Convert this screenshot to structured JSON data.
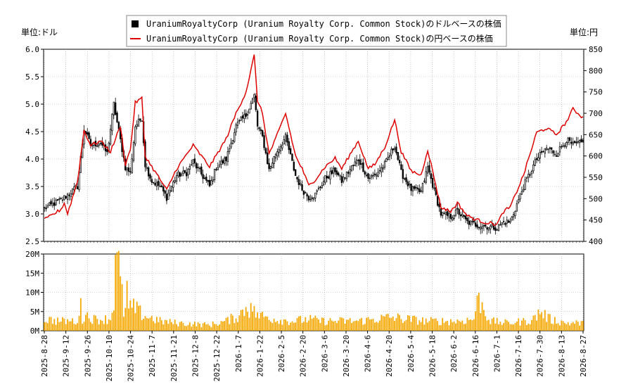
{
  "units": {
    "left": "単位:ドル",
    "right": "単位:円"
  },
  "legend": {
    "usd": "UraniumRoyaltyCorp (Uranium Royalty Corp. Common Stock)のドルベースの株価",
    "jpy": "UraniumRoyaltyCorp (Uranium Royalty Corp. Common Stock)の円ベースの株価"
  },
  "colors": {
    "candle": "#000000",
    "jpy_line": "#dd0000",
    "volume": "#f5a800",
    "grid": "#aaaaaa"
  },
  "chart_data": {
    "type": "line",
    "price_panel": {
      "y_left": {
        "range": [
          2.5,
          6.0
        ],
        "ticks": [
          "2.5",
          "3.0",
          "3.5",
          "4.0",
          "4.5",
          "5.0",
          "5.5",
          "6.0"
        ]
      },
      "y_right": {
        "range": [
          400,
          850
        ],
        "ticks": [
          "400",
          "450",
          "500",
          "550",
          "600",
          "650",
          "700",
          "750",
          "800",
          "850"
        ]
      }
    },
    "volume_panel": {
      "range": [
        0,
        20
      ],
      "unit": "M",
      "ticks": [
        "0M",
        "5M",
        "10M",
        "15M",
        "20M"
      ]
    },
    "x_ticks": [
      "2025-8-28",
      "2025-9-12",
      "2025-9-26",
      "2025-10-10",
      "2025-10-24",
      "2025-11-7",
      "2025-11-21",
      "2025-12-8",
      "2025-12-22",
      "2026-1-7",
      "2026-1-22",
      "2026-2-5",
      "2026-2-20",
      "2026-3-6",
      "2026-3-20",
      "2026-4-6",
      "2026-4-20",
      "2026-5-4",
      "2026-5-18",
      "2026-6-2",
      "2026-6-16",
      "2026-7-1",
      "2026-7-16",
      "2026-7-30",
      "2026-8-13",
      "2026-8-27"
    ],
    "series": [
      {
        "name": "UraniumRoyaltyCorp (Uranium Royalty Corp. Common Stock)のドルベースの株価",
        "anchor_x": [
          0,
          10,
          20,
          24,
          28,
          34,
          38,
          42,
          49,
          52,
          55,
          59,
          61,
          65,
          70,
          74,
          80,
          86,
          90,
          100,
          104,
          110,
          116,
          122,
          127,
          129,
          132,
          136,
          140,
          146,
          152,
          156,
          160,
          164,
          170,
          176,
          180,
          186,
          190,
          196,
          200,
          206,
          212,
          216,
          222,
          228,
          232,
          240,
          246,
          250,
          256,
          262,
          266,
          274,
          278,
          282,
          290,
          298,
          304,
          310,
          316,
          320,
          326
        ],
        "anchor_close": [
          3.1,
          3.25,
          3.5,
          4.55,
          4.25,
          4.3,
          4.1,
          5.0,
          3.85,
          3.75,
          4.6,
          4.75,
          3.9,
          3.6,
          3.5,
          3.3,
          3.7,
          3.75,
          3.95,
          3.5,
          3.85,
          4.0,
          4.6,
          4.8,
          5.15,
          4.6,
          4.4,
          3.8,
          4.1,
          4.4,
          3.7,
          3.45,
          3.3,
          3.35,
          3.65,
          3.8,
          3.6,
          3.85,
          4.0,
          3.65,
          3.7,
          3.9,
          4.25,
          3.75,
          3.45,
          3.4,
          3.85,
          3.0,
          2.95,
          3.05,
          2.85,
          2.8,
          2.78,
          2.75,
          2.85,
          2.85,
          3.5,
          4.0,
          4.2,
          4.1,
          4.35,
          4.25,
          4.3
        ],
        "count": 327
      },
      {
        "name": "UraniumRoyaltyCorp (Uranium Royalty Corp. Common Stock)の円ベースの株価",
        "anchor_x": [
          0,
          10,
          12,
          14,
          20,
          24,
          28,
          34,
          40,
          46,
          49,
          52,
          55,
          59,
          61,
          65,
          70,
          74,
          80,
          90,
          100,
          110,
          116,
          122,
          127,
          129,
          132,
          136,
          140,
          146,
          152,
          156,
          160,
          164,
          170,
          176,
          180,
          186,
          190,
          196,
          200,
          206,
          212,
          216,
          222,
          228,
          232,
          240,
          246,
          250,
          256,
          262,
          266,
          274,
          278,
          282,
          290,
          298,
          304,
          310,
          316,
          320,
          326
        ],
        "anchor_close": [
          450,
          475,
          490,
          465,
          540,
          660,
          625,
          635,
          610,
          670,
          580,
          615,
          725,
          735,
          600,
          575,
          545,
          520,
          570,
          625,
          575,
          640,
          700,
          750,
          835,
          730,
          700,
          605,
          640,
          700,
          600,
          570,
          530,
          545,
          575,
          595,
          570,
          610,
          635,
          570,
          580,
          620,
          685,
          610,
          565,
          555,
          615,
          480,
          470,
          490,
          460,
          450,
          445,
          440,
          470,
          480,
          555,
          655,
          665,
          650,
          680,
          710,
          690
        ],
        "count": 327
      }
    ],
    "volume": {
      "anchor_x": [
        0,
        10,
        20,
        26,
        30,
        40,
        43,
        44,
        48,
        54,
        60,
        70,
        80,
        100,
        110,
        118,
        122,
        130,
        140,
        150,
        160,
        168,
        180,
        190,
        200,
        210,
        220,
        232,
        240,
        250,
        260,
        262,
        270,
        280,
        292,
        296,
        300,
        306,
        316,
        326
      ],
      "anchor_values": [
        3,
        2.5,
        2.5,
        4,
        3,
        3,
        10,
        20,
        5,
        6,
        4,
        2.5,
        2,
        1.5,
        2.5,
        4,
        6,
        4,
        3,
        2.5,
        3,
        2.5,
        2.5,
        2.5,
        3,
        3.5,
        3,
        2.5,
        2.5,
        2.5,
        3,
        9,
        2.5,
        2,
        2.5,
        3,
        5,
        3,
        2,
        2
      ],
      "count": 327
    }
  }
}
